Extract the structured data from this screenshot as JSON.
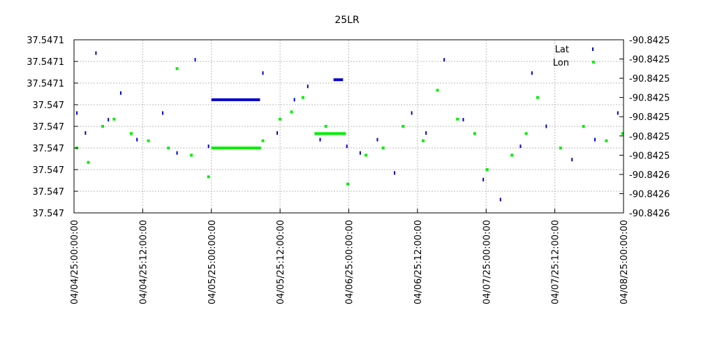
{
  "chart_data": {
    "type": "scatter",
    "title": "25LR",
    "xlabel": "",
    "ylabel": "",
    "x_ticks": [
      "04/04/25:00:00:00",
      "04/04/25:12:00:00",
      "04/05/25:00:00:00",
      "04/05/25:12:00:00",
      "04/06/25:00:00:00",
      "04/06/25:12:00:00",
      "04/07/25:00:00:00",
      "04/07/25:12:00:00",
      "04/08/25:00:00:00"
    ],
    "y_left_ticks": [
      "37.5471",
      "37.5471",
      "37.5471",
      "37.547",
      "37.547",
      "37.547",
      "37.547",
      "37.547",
      "37.547"
    ],
    "y_right_ticks": [
      "-90.8425",
      "-90.8425",
      "-90.8425",
      "-90.8425",
      "-90.8425",
      "-90.8425",
      "-90.8425",
      "-90.8426",
      "-90.8426",
      "-90.8426"
    ],
    "grid": true,
    "legend_position": "top-right",
    "series": [
      {
        "name": "Lat",
        "color": "#0000cc",
        "axis": "left",
        "segments": [
          {
            "type": "line",
            "x": [
              "04/05/25:00:00:00",
              "04/05/25:08:30:00"
            ],
            "y": 37.54705
          },
          {
            "type": "line",
            "x": [
              "04/05/25:21:20:00",
              "04/05/25:23:00:00"
            ],
            "y": 37.54708
          }
        ],
        "points": [
          {
            "x": "04/04/25:00:30:00",
            "y": 37.54703
          },
          {
            "x": "04/04/25:02:00:00",
            "y": 37.547
          },
          {
            "x": "04/04/25:03:50:00",
            "y": 37.54712
          },
          {
            "x": "04/04/25:06:00:00",
            "y": 37.54702
          },
          {
            "x": "04/04/25:08:10:00",
            "y": 37.54706
          },
          {
            "x": "04/04/25:11:00:00",
            "y": 37.54699
          },
          {
            "x": "04/04/25:15:30:00",
            "y": 37.54703
          },
          {
            "x": "04/04/25:18:00:00",
            "y": 37.54697
          },
          {
            "x": "04/04/25:21:10:00",
            "y": 37.54711
          },
          {
            "x": "04/04/25:23:30:00",
            "y": 37.54698
          },
          {
            "x": "04/05/25:09:00:00",
            "y": 37.54709
          },
          {
            "x": "04/05/25:11:30:00",
            "y": 37.547
          },
          {
            "x": "04/05/25:14:30:00",
            "y": 37.54705
          },
          {
            "x": "04/05/25:16:50:00",
            "y": 37.54707
          },
          {
            "x": "04/05/25:19:00:00",
            "y": 37.54699
          },
          {
            "x": "04/05/25:23:40:00",
            "y": 37.54698
          },
          {
            "x": "04/06/25:02:00:00",
            "y": 37.54697
          },
          {
            "x": "04/06/25:05:00:00",
            "y": 37.54699
          },
          {
            "x": "04/06/25:08:00:00",
            "y": 37.54694
          },
          {
            "x": "04/06/25:11:00:00",
            "y": 37.54703
          },
          {
            "x": "04/06/25:13:30:00",
            "y": 37.547
          },
          {
            "x": "04/06/25:16:40:00",
            "y": 37.54711
          },
          {
            "x": "04/06/25:20:00:00",
            "y": 37.54702
          },
          {
            "x": "04/06/25:23:30:00",
            "y": 37.54693
          },
          {
            "x": "04/07/25:02:30:00",
            "y": 37.5469
          },
          {
            "x": "04/07/25:06:00:00",
            "y": 37.54698
          },
          {
            "x": "04/07/25:08:00:00",
            "y": 37.54709
          },
          {
            "x": "04/07/25:10:30:00",
            "y": 37.54701
          },
          {
            "x": "04/07/25:15:00:00",
            "y": 37.54696
          },
          {
            "x": "04/07/25:19:00:00",
            "y": 37.54699
          },
          {
            "x": "04/07/25:23:00:00",
            "y": 37.54703
          }
        ]
      },
      {
        "name": "Lon",
        "color": "#00ee00",
        "axis": "right",
        "segments": [
          {
            "type": "line",
            "x": [
              "04/05/25:00:00:00",
              "04/05/25:08:40:00"
            ],
            "y": -90.84253
          },
          {
            "type": "line",
            "x": [
              "04/05/25:18:00:00",
              "04/05/25:23:30:00"
            ],
            "y": -90.84251
          }
        ],
        "points": [
          {
            "x": "04/04/25:00:30:00",
            "y": -90.84253
          },
          {
            "x": "04/04/25:02:30:00",
            "y": -90.84255
          },
          {
            "x": "04/04/25:05:00:00",
            "y": -90.8425
          },
          {
            "x": "04/04/25:07:00:00",
            "y": -90.84249
          },
          {
            "x": "04/04/25:10:00:00",
            "y": -90.84251
          },
          {
            "x": "04/04/25:13:00:00",
            "y": -90.84252
          },
          {
            "x": "04/04/25:16:30:00",
            "y": -90.84253
          },
          {
            "x": "04/04/25:18:00:00",
            "y": -90.84242
          },
          {
            "x": "04/04/25:20:30:00",
            "y": -90.84254
          },
          {
            "x": "04/04/25:23:30:00",
            "y": -90.84257
          },
          {
            "x": "04/05/25:09:00:00",
            "y": -90.84252
          },
          {
            "x": "04/05/25:12:00:00",
            "y": -90.84249
          },
          {
            "x": "04/05/25:14:00:00",
            "y": -90.84248
          },
          {
            "x": "04/05/25:16:00:00",
            "y": -90.84246
          },
          {
            "x": "04/05/25:20:00:00",
            "y": -90.8425
          },
          {
            "x": "04/05/25:23:50:00",
            "y": -90.84258
          },
          {
            "x": "04/06/25:03:00:00",
            "y": -90.84254
          },
          {
            "x": "04/06/25:06:00:00",
            "y": -90.84253
          },
          {
            "x": "04/06/25:09:30:00",
            "y": -90.8425
          },
          {
            "x": "04/06/25:13:00:00",
            "y": -90.84252
          },
          {
            "x": "04/06/25:15:30:00",
            "y": -90.84245
          },
          {
            "x": "04/06/25:19:00:00",
            "y": -90.84249
          },
          {
            "x": "04/06/25:22:00:00",
            "y": -90.84251
          },
          {
            "x": "04/07/25:00:10:00",
            "y": -90.84256
          },
          {
            "x": "04/07/25:04:30:00",
            "y": -90.84254
          },
          {
            "x": "04/07/25:07:00:00",
            "y": -90.84251
          },
          {
            "x": "04/07/25:09:00:00",
            "y": -90.84246
          },
          {
            "x": "04/07/25:13:00:00",
            "y": -90.84253
          },
          {
            "x": "04/07/25:17:00:00",
            "y": -90.8425
          },
          {
            "x": "04/07/25:21:00:00",
            "y": -90.84252
          },
          {
            "x": "04/07/25:23:50:00",
            "y": -90.84251
          }
        ]
      }
    ]
  }
}
